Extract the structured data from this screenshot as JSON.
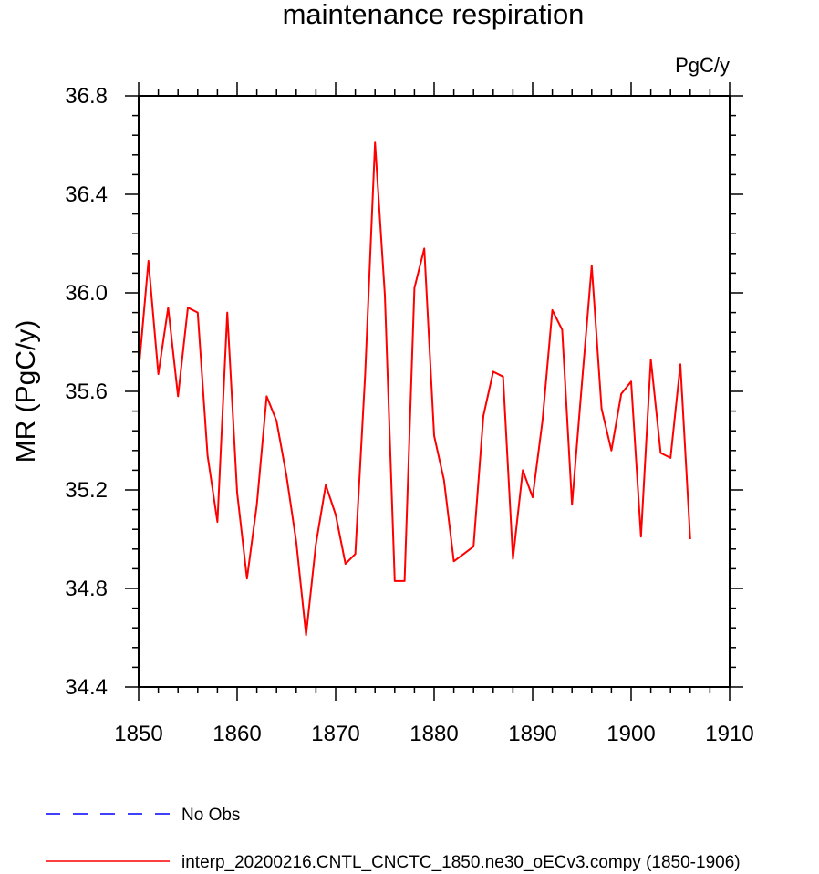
{
  "chart_data": {
    "type": "line",
    "title": "maintenance respiration",
    "units_label": "PgC/y",
    "ylabel": "MR  (PgC/y)",
    "xlabel": "",
    "xlim": [
      1850,
      1910
    ],
    "ylim": [
      34.4,
      36.8
    ],
    "x_ticks": [
      1850,
      1860,
      1870,
      1880,
      1890,
      1900,
      1910
    ],
    "y_ticks": [
      34.4,
      34.8,
      35.2,
      35.6,
      36.0,
      36.4,
      36.8
    ],
    "y_tick_labels": [
      "34.4",
      "34.8",
      "35.2",
      "35.6",
      "36.0",
      "36.4",
      "36.8"
    ],
    "grid": false,
    "legend_placement": "bottom-left, below plot",
    "series": [
      {
        "name": "interp_20200216.CNTL_CNCTC_1850.ne30_oECv3.compy (1850-1906)",
        "color": "#ff0000",
        "style": "solid",
        "x": [
          1850,
          1851,
          1852,
          1853,
          1854,
          1855,
          1856,
          1857,
          1858,
          1859,
          1860,
          1861,
          1862,
          1863,
          1864,
          1865,
          1866,
          1867,
          1868,
          1869,
          1870,
          1871,
          1872,
          1873,
          1874,
          1875,
          1876,
          1877,
          1878,
          1879,
          1880,
          1881,
          1882,
          1883,
          1884,
          1885,
          1886,
          1887,
          1888,
          1889,
          1890,
          1891,
          1892,
          1893,
          1894,
          1895,
          1896,
          1897,
          1898,
          1899,
          1900,
          1901,
          1902,
          1903,
          1904,
          1905,
          1906
        ],
        "values": [
          35.68,
          36.13,
          35.67,
          35.94,
          35.58,
          35.94,
          35.92,
          35.34,
          35.07,
          35.92,
          35.19,
          34.84,
          35.14,
          35.58,
          35.48,
          35.26,
          34.99,
          34.61,
          34.98,
          35.22,
          35.1,
          34.9,
          34.94,
          35.67,
          36.61,
          35.99,
          34.83,
          34.83,
          36.02,
          36.18,
          35.42,
          35.24,
          34.91,
          34.94,
          34.97,
          35.5,
          35.68,
          35.66,
          34.92,
          35.28,
          35.17,
          35.48,
          35.93,
          35.85,
          35.14,
          35.63,
          36.11,
          35.53,
          35.36,
          35.59,
          35.64,
          35.01,
          35.73,
          35.35,
          35.33,
          35.71,
          35.0
        ]
      }
    ],
    "legend": [
      {
        "label": "No Obs",
        "color": "#0000ff",
        "style": "dashed"
      },
      {
        "label": "interp_20200216.CNTL_CNCTC_1850.ne30_oECv3.compy (1850-1906)",
        "color": "#ff0000",
        "style": "solid"
      }
    ]
  }
}
